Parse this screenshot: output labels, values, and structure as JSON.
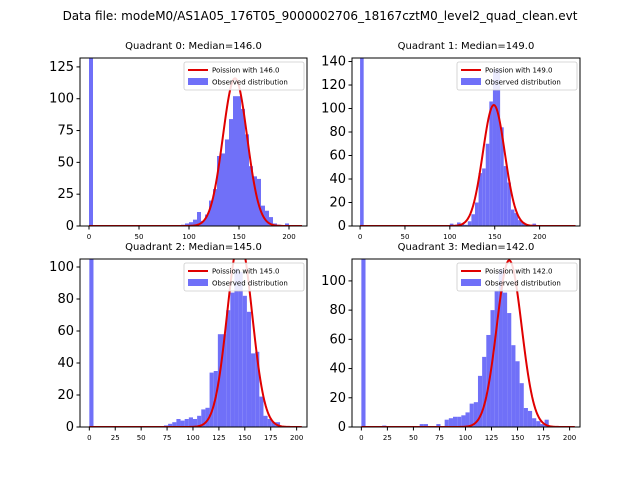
{
  "figure": {
    "suptitle": "Data file: modeM0/AS1A05_176T05_9000002706_18167cztM0_level2_quad_clean.evt"
  },
  "colors": {
    "bar": "#7070f8",
    "fit": "#e00000",
    "axis": "#000000",
    "legend_border": "#cccccc"
  },
  "chart_data": [
    {
      "type": "bar",
      "title": "Quadrant 0: Median=146.0",
      "xlim": [
        -9,
        218
      ],
      "ylim": [
        0,
        132
      ],
      "xticks": [
        0,
        50,
        100,
        150,
        200
      ],
      "yticks": [
        0,
        25,
        50,
        75,
        100,
        125
      ],
      "bin_width": 4,
      "bars": [
        {
          "x": 0,
          "y": 132
        },
        {
          "x": 92,
          "y": 1
        },
        {
          "x": 96,
          "y": 2
        },
        {
          "x": 100,
          "y": 3
        },
        {
          "x": 104,
          "y": 5
        },
        {
          "x": 108,
          "y": 11
        },
        {
          "x": 112,
          "y": 4
        },
        {
          "x": 116,
          "y": 9
        },
        {
          "x": 120,
          "y": 20
        },
        {
          "x": 124,
          "y": 29
        },
        {
          "x": 128,
          "y": 55
        },
        {
          "x": 132,
          "y": 57
        },
        {
          "x": 136,
          "y": 68
        },
        {
          "x": 140,
          "y": 84
        },
        {
          "x": 144,
          "y": 102
        },
        {
          "x": 148,
          "y": 102
        },
        {
          "x": 152,
          "y": 92
        },
        {
          "x": 156,
          "y": 72
        },
        {
          "x": 160,
          "y": 47
        },
        {
          "x": 164,
          "y": 39
        },
        {
          "x": 168,
          "y": 37
        },
        {
          "x": 172,
          "y": 16
        },
        {
          "x": 176,
          "y": 12
        },
        {
          "x": 180,
          "y": 7
        },
        {
          "x": 184,
          "y": 2
        },
        {
          "x": 188,
          "y": 1
        },
        {
          "x": 192,
          "y": 0
        },
        {
          "x": 196,
          "y": 2
        }
      ],
      "fit": {
        "mean": 146.0,
        "label": "Poission with 146.0"
      },
      "legend_bar_label": "Observed distribution"
    },
    {
      "type": "bar",
      "title": "Quadrant 1: Median=149.0",
      "xlim": [
        -9,
        245
      ],
      "ylim": [
        0,
        143
      ],
      "xticks": [
        0,
        50,
        100,
        150,
        200
      ],
      "yticks": [
        0,
        20,
        40,
        60,
        80,
        100,
        120,
        140
      ],
      "bin_width": 4,
      "bars": [
        {
          "x": 0,
          "y": 143
        },
        {
          "x": 100,
          "y": 2
        },
        {
          "x": 104,
          "y": 1
        },
        {
          "x": 108,
          "y": 3
        },
        {
          "x": 112,
          "y": 2
        },
        {
          "x": 116,
          "y": 1
        },
        {
          "x": 120,
          "y": 4
        },
        {
          "x": 124,
          "y": 10
        },
        {
          "x": 128,
          "y": 20
        },
        {
          "x": 132,
          "y": 45
        },
        {
          "x": 136,
          "y": 49
        },
        {
          "x": 140,
          "y": 70
        },
        {
          "x": 144,
          "y": 106
        },
        {
          "x": 148,
          "y": 133
        },
        {
          "x": 152,
          "y": 134
        },
        {
          "x": 156,
          "y": 84
        },
        {
          "x": 160,
          "y": 51
        },
        {
          "x": 164,
          "y": 37
        },
        {
          "x": 168,
          "y": 14
        },
        {
          "x": 172,
          "y": 11
        },
        {
          "x": 176,
          "y": 5
        },
        {
          "x": 180,
          "y": 3
        },
        {
          "x": 184,
          "y": 1
        },
        {
          "x": 188,
          "y": 0
        },
        {
          "x": 192,
          "y": 2
        }
      ],
      "fit": {
        "mean": 149.0,
        "label": "Poission with 149.0"
      },
      "legend_bar_label": "Observed distribution"
    },
    {
      "type": "bar",
      "title": "Quadrant 2: Median=145.0",
      "xlim": [
        -9,
        210
      ],
      "ylim": [
        0,
        105
      ],
      "xticks": [
        0,
        25,
        50,
        75,
        100,
        125,
        150,
        175,
        200
      ],
      "yticks": [
        0,
        20,
        40,
        60,
        80,
        100
      ],
      "bin_width": 4,
      "bars": [
        {
          "x": 0,
          "y": 105
        },
        {
          "x": 72,
          "y": 1
        },
        {
          "x": 76,
          "y": 2
        },
        {
          "x": 80,
          "y": 3
        },
        {
          "x": 84,
          "y": 5
        },
        {
          "x": 88,
          "y": 4
        },
        {
          "x": 92,
          "y": 5
        },
        {
          "x": 96,
          "y": 6
        },
        {
          "x": 100,
          "y": 5
        },
        {
          "x": 104,
          "y": 7
        },
        {
          "x": 108,
          "y": 11
        },
        {
          "x": 112,
          "y": 12
        },
        {
          "x": 116,
          "y": 34
        },
        {
          "x": 120,
          "y": 35
        },
        {
          "x": 124,
          "y": 58
        },
        {
          "x": 128,
          "y": 58
        },
        {
          "x": 132,
          "y": 73
        },
        {
          "x": 136,
          "y": 84
        },
        {
          "x": 140,
          "y": 99
        },
        {
          "x": 144,
          "y": 97
        },
        {
          "x": 148,
          "y": 82
        },
        {
          "x": 152,
          "y": 72
        },
        {
          "x": 156,
          "y": 46
        },
        {
          "x": 160,
          "y": 47
        },
        {
          "x": 164,
          "y": 19
        },
        {
          "x": 168,
          "y": 7
        },
        {
          "x": 172,
          "y": 5
        },
        {
          "x": 176,
          "y": 3
        },
        {
          "x": 180,
          "y": 3
        }
      ],
      "fit": {
        "mean": 145.0,
        "label": "Poission with 145.0"
      },
      "legend_bar_label": "Observed distribution"
    },
    {
      "type": "bar",
      "title": "Quadrant 3: Median=142.0",
      "xlim": [
        -9,
        210
      ],
      "ylim": [
        0,
        115
      ],
      "xticks": [
        0,
        25,
        50,
        75,
        100,
        125,
        150,
        175,
        200
      ],
      "yticks": [
        0,
        20,
        40,
        60,
        80,
        100
      ],
      "bin_width": 4,
      "bars": [
        {
          "x": 0,
          "y": 115
        },
        {
          "x": 20,
          "y": 1
        },
        {
          "x": 56,
          "y": 2
        },
        {
          "x": 60,
          "y": 2
        },
        {
          "x": 72,
          "y": 2
        },
        {
          "x": 80,
          "y": 5
        },
        {
          "x": 84,
          "y": 6
        },
        {
          "x": 88,
          "y": 7
        },
        {
          "x": 92,
          "y": 7
        },
        {
          "x": 96,
          "y": 8
        },
        {
          "x": 100,
          "y": 10
        },
        {
          "x": 104,
          "y": 16
        },
        {
          "x": 108,
          "y": 17
        },
        {
          "x": 112,
          "y": 35
        },
        {
          "x": 116,
          "y": 48
        },
        {
          "x": 120,
          "y": 63
        },
        {
          "x": 124,
          "y": 80
        },
        {
          "x": 128,
          "y": 93
        },
        {
          "x": 132,
          "y": 108
        },
        {
          "x": 136,
          "y": 92
        },
        {
          "x": 140,
          "y": 78
        },
        {
          "x": 144,
          "y": 56
        },
        {
          "x": 148,
          "y": 45
        },
        {
          "x": 152,
          "y": 30
        },
        {
          "x": 156,
          "y": 13
        },
        {
          "x": 160,
          "y": 11
        },
        {
          "x": 164,
          "y": 6
        },
        {
          "x": 168,
          "y": 4
        },
        {
          "x": 172,
          "y": 2
        },
        {
          "x": 176,
          "y": 5
        }
      ],
      "fit": {
        "mean": 142.0,
        "label": "Poission with 142.0"
      },
      "legend_bar_label": "Observed distribution"
    }
  ]
}
